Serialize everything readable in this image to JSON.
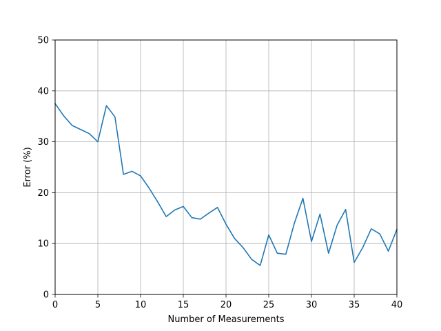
{
  "chart_data": {
    "type": "line",
    "title": "",
    "xlabel": "Number of Measurements",
    "ylabel": "Error (%)",
    "xlim": [
      0,
      40
    ],
    "ylim": [
      0,
      50
    ],
    "x_ticks": [
      0,
      5,
      10,
      15,
      20,
      25,
      30,
      35,
      40
    ],
    "y_ticks": [
      0,
      10,
      20,
      30,
      40,
      50
    ],
    "grid": true,
    "legend": "none",
    "series": [
      {
        "color": "#1f77b4",
        "x": [
          0,
          1,
          2,
          3,
          4,
          5,
          6,
          7,
          8,
          9,
          10,
          11,
          12,
          13,
          14,
          15,
          16,
          17,
          18,
          19,
          20,
          21,
          22,
          23,
          24,
          25,
          26,
          27,
          28,
          29,
          30,
          31,
          32,
          33,
          34,
          35,
          36,
          37,
          38,
          39,
          40
        ],
        "y": [
          37.5,
          35.1,
          33.2,
          32.4,
          31.6,
          30.0,
          37.1,
          34.9,
          23.6,
          24.2,
          23.3,
          20.9,
          18.2,
          15.3,
          16.6,
          17.3,
          15.1,
          14.8,
          16.0,
          17.1,
          13.8,
          11.0,
          9.2,
          6.9,
          5.7,
          11.7,
          8.1,
          7.9,
          14.0,
          18.9,
          10.4,
          15.8,
          8.1,
          13.6,
          16.7,
          6.3,
          9.2,
          12.9,
          11.9,
          8.5,
          12.8
        ]
      }
    ]
  }
}
